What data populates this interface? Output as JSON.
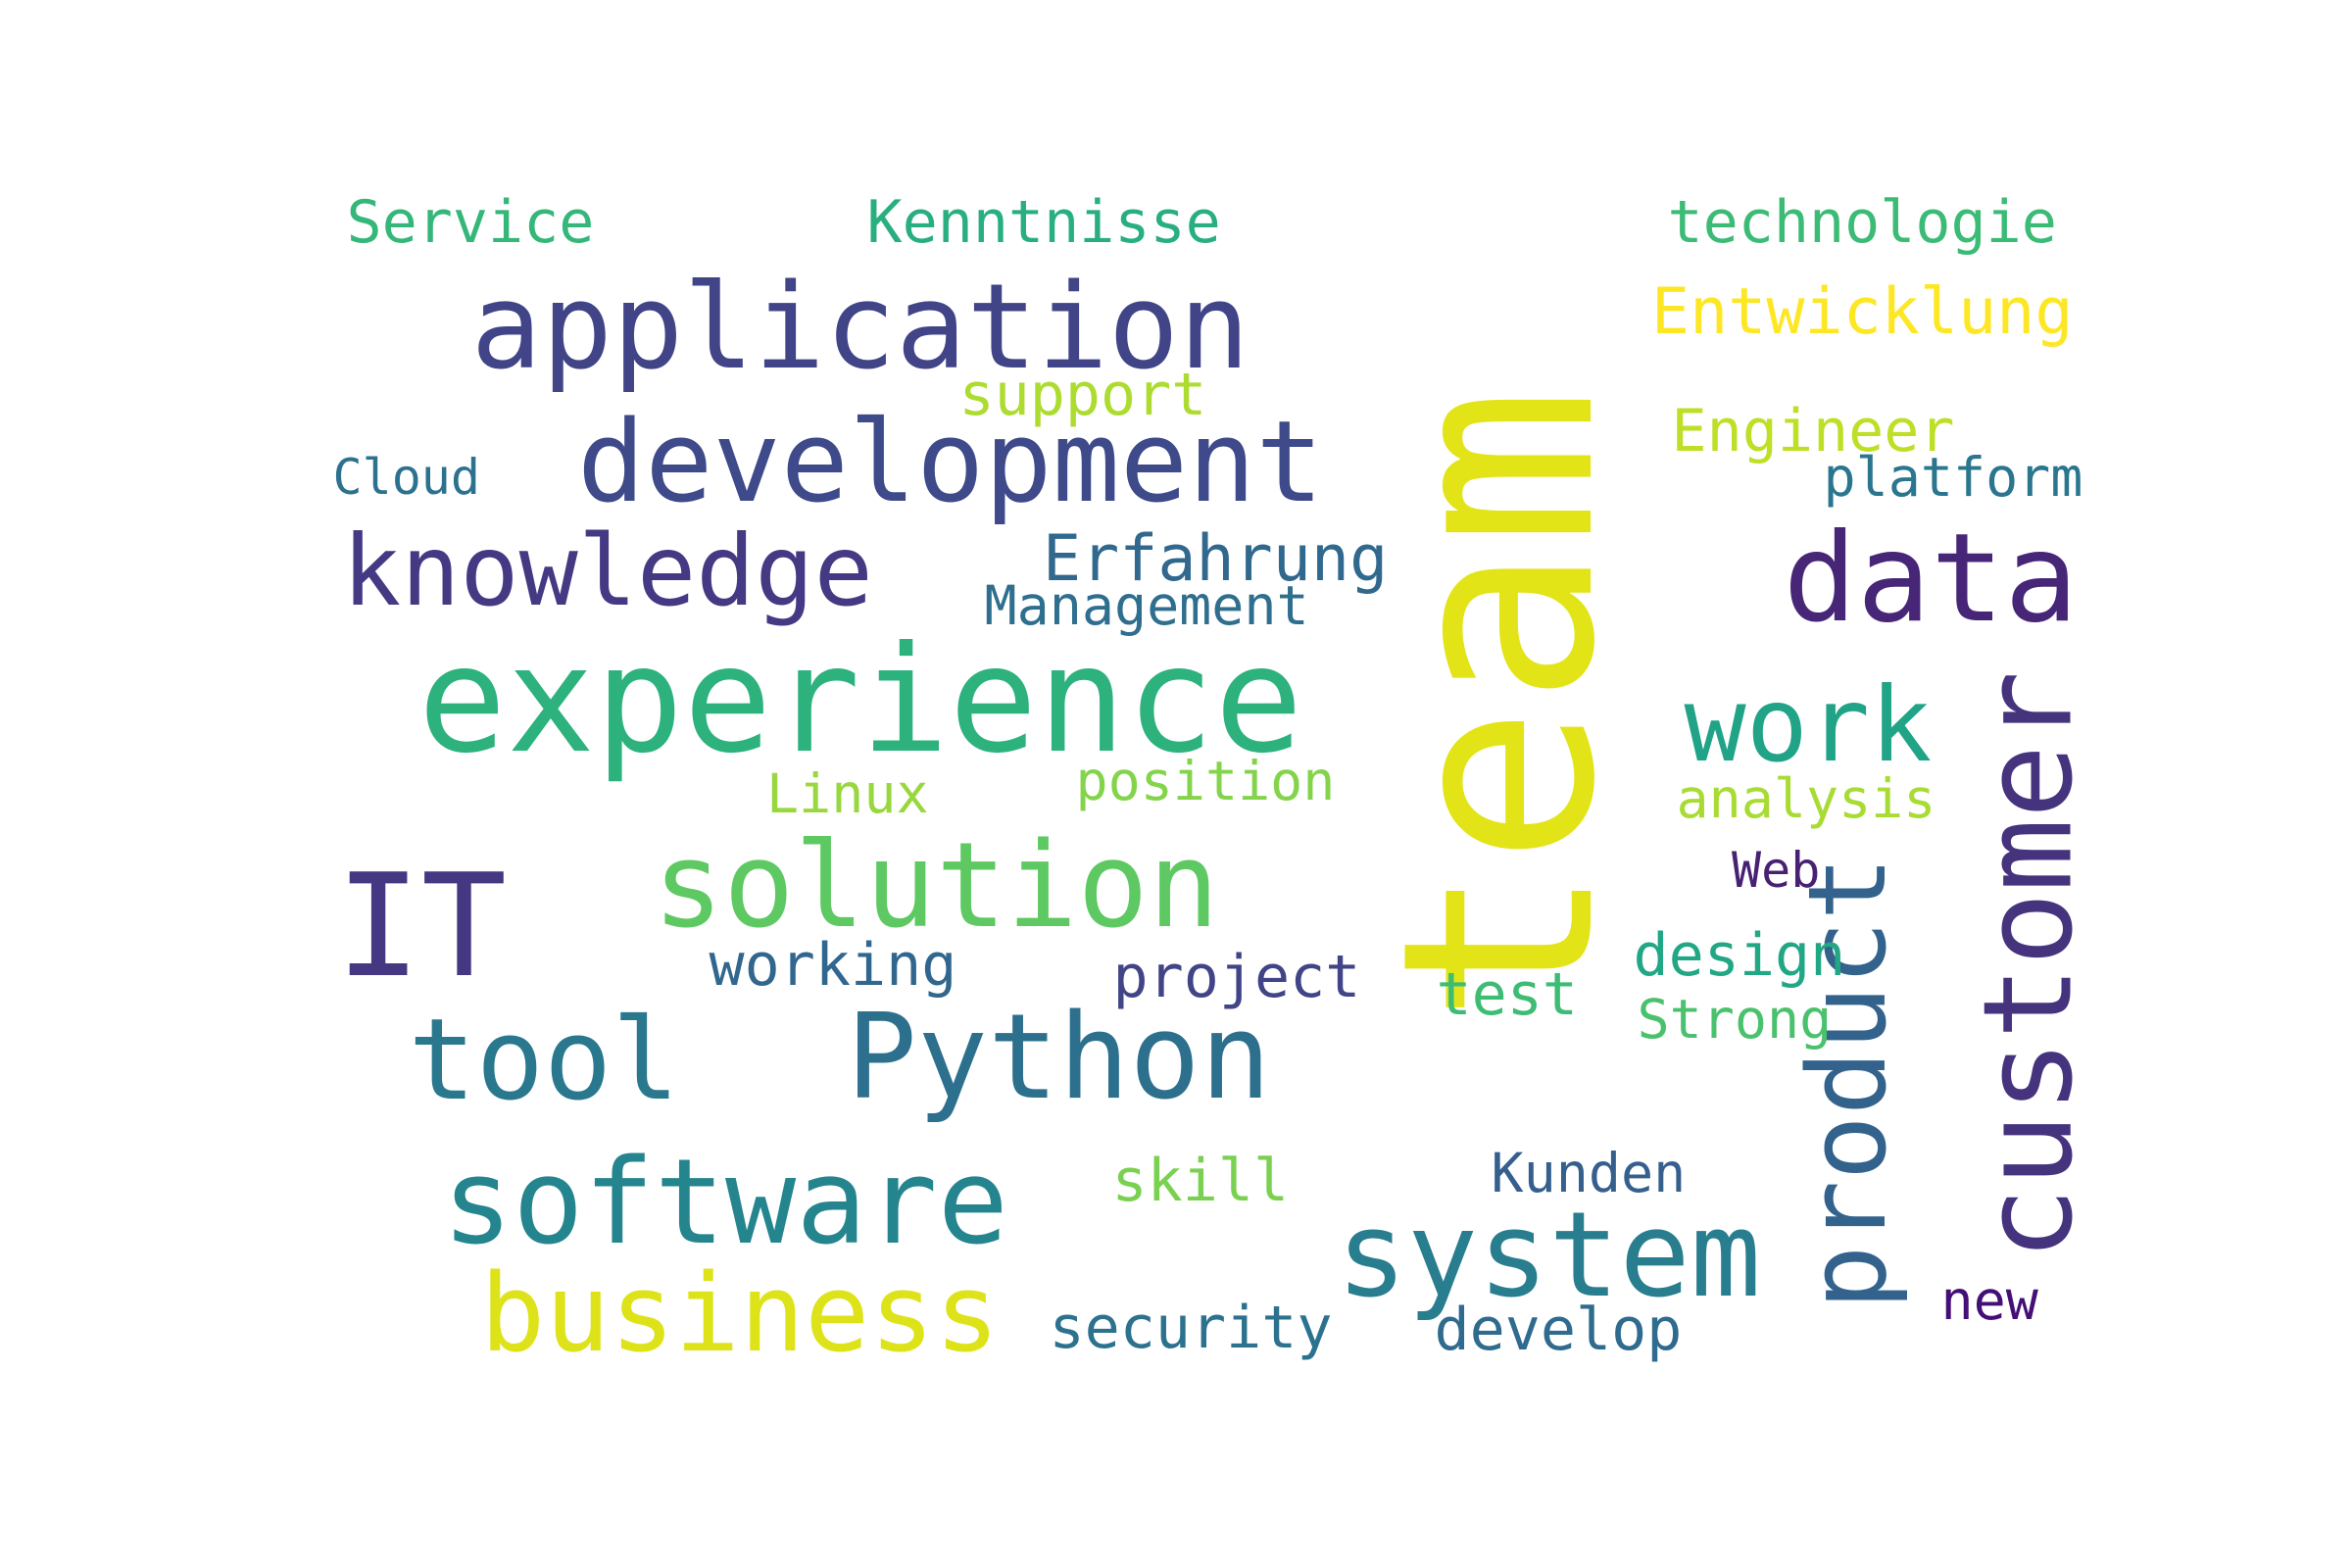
{
  "words": [
    {
      "key": "team",
      "text": "team",
      "color": "#e2e418",
      "vertical": true
    },
    {
      "key": "application",
      "text": "application",
      "color": "#414487"
    },
    {
      "key": "experience",
      "text": "experience",
      "color": "#2db27d"
    },
    {
      "key": "development",
      "text": "development",
      "color": "#3e4a89"
    },
    {
      "key": "solution",
      "text": "solution",
      "color": "#5ec962"
    },
    {
      "key": "software",
      "text": "software",
      "color": "#25858e"
    },
    {
      "key": "python",
      "text": "Python",
      "color": "#2d708e"
    },
    {
      "key": "system",
      "text": "system",
      "color": "#287d8e"
    },
    {
      "key": "data",
      "text": "data",
      "color": "#482677"
    },
    {
      "key": "knowledge",
      "text": "knowledge",
      "color": "#443983"
    },
    {
      "key": "customer",
      "text": "customer",
      "color": "#46337e",
      "vertical": true
    },
    {
      "key": "product",
      "text": "product",
      "color": "#33638d",
      "vertical": true
    },
    {
      "key": "work",
      "text": "work",
      "color": "#20a386"
    },
    {
      "key": "it",
      "text": "IT",
      "color": "#453781"
    },
    {
      "key": "tool",
      "text": "tool",
      "color": "#2a788e"
    },
    {
      "key": "business",
      "text": "business",
      "color": "#dde318"
    },
    {
      "key": "service",
      "text": "Service",
      "color": "#35b779"
    },
    {
      "key": "kenntnisse",
      "text": "Kenntnisse",
      "color": "#29af7f"
    },
    {
      "key": "technologie",
      "text": "technologie",
      "color": "#3bbb75"
    },
    {
      "key": "entwicklung",
      "text": "Entwicklung",
      "color": "#fde725"
    },
    {
      "key": "support",
      "text": "support",
      "color": "#addc30"
    },
    {
      "key": "engineer",
      "text": "Engineer",
      "color": "#bddf26"
    },
    {
      "key": "cloud",
      "text": "Cloud",
      "color": "#2c728e"
    },
    {
      "key": "platform",
      "text": "platform",
      "color": "#2a768e"
    },
    {
      "key": "erfahrung",
      "text": "Erfahrung",
      "color": "#31688e"
    },
    {
      "key": "management",
      "text": "Management",
      "color": "#2e6e8e"
    },
    {
      "key": "linux",
      "text": "Linux",
      "color": "#98d83e"
    },
    {
      "key": "position",
      "text": "position",
      "color": "#84d44b"
    },
    {
      "key": "analysis",
      "text": "analysis",
      "color": "#a8db34"
    },
    {
      "key": "web",
      "text": "Web",
      "color": "#482173"
    },
    {
      "key": "working",
      "text": "working",
      "color": "#31678e"
    },
    {
      "key": "project",
      "text": "project",
      "color": "#414487"
    },
    {
      "key": "design",
      "text": "design",
      "color": "#22a785"
    },
    {
      "key": "test",
      "text": "test",
      "color": "#3dbc74"
    },
    {
      "key": "strong",
      "text": "Strong",
      "color": "#4ac16d"
    },
    {
      "key": "skill",
      "text": "skill",
      "color": "#7ad151"
    },
    {
      "key": "kunden",
      "text": "Kunden",
      "color": "#355f8d"
    },
    {
      "key": "security",
      "text": "security",
      "color": "#2c728e"
    },
    {
      "key": "develop",
      "text": "develop",
      "color": "#2f6b8e"
    },
    {
      "key": "new",
      "text": "new",
      "color": "#440f76"
    }
  ]
}
